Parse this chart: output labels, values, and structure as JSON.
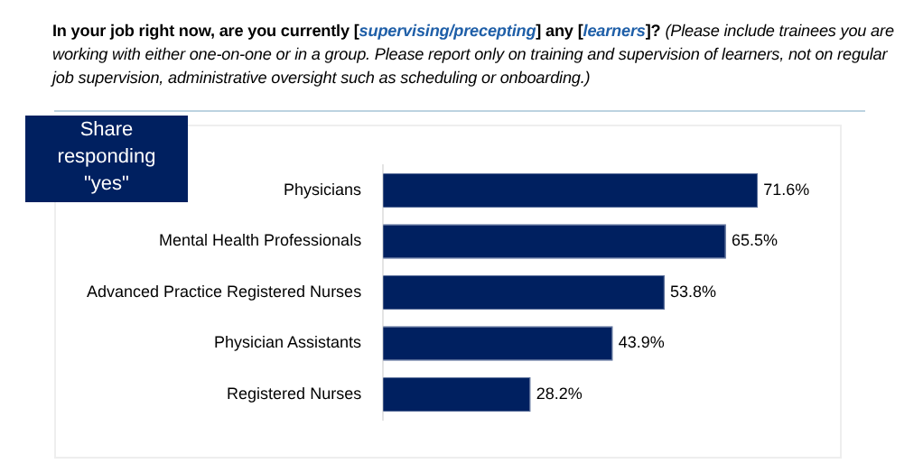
{
  "chart_data": {
    "type": "bar",
    "orientation": "horizontal",
    "title": "In your job right now, are you currently [supervising/precepting] any [learners]? (Please include trainees you are working with either one-on-one or in a group. Please report only on training and supervision of learners, not on regular job supervision, administrative oversight such as scheduling or onboarding.)",
    "annotations": [
      "Share responding \"yes\""
    ],
    "categories": [
      "Physicians",
      "Mental Health Professionals",
      "Advanced Practice Registered Nurses",
      "Physician Assistants",
      "Registered Nurses"
    ],
    "values": [
      71.6,
      65.5,
      53.8,
      43.9,
      28.2
    ],
    "value_labels": [
      "71.6%",
      "65.5%",
      "53.8%",
      "43.9%",
      "28.2%"
    ],
    "color": "#002060",
    "tick_labels": "y",
    "legend": false
  }
}
